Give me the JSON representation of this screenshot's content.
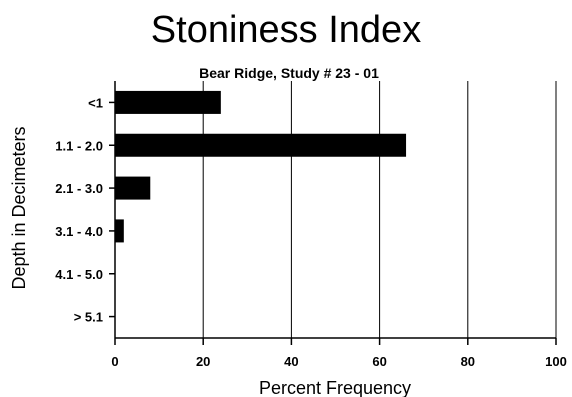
{
  "chart_data": {
    "type": "bar",
    "orientation": "horizontal",
    "title": "Stoniness Index",
    "subtitle": "Bear Ridge, Study # 23 - 01",
    "xlabel": "Percent Frequency",
    "ylabel": "Depth in Decimeters",
    "categories": [
      "<1",
      "1.1 - 2.0",
      "2.1 - 3.0",
      "3.1 - 4.0",
      "4.1 - 5.0",
      "> 5.1"
    ],
    "values": [
      24,
      66,
      8,
      2,
      0,
      0
    ],
    "xlim": [
      0,
      100
    ],
    "xticks": [
      0,
      20,
      40,
      60,
      80,
      100
    ],
    "grid": "vertical",
    "bar_color": "#000000"
  }
}
